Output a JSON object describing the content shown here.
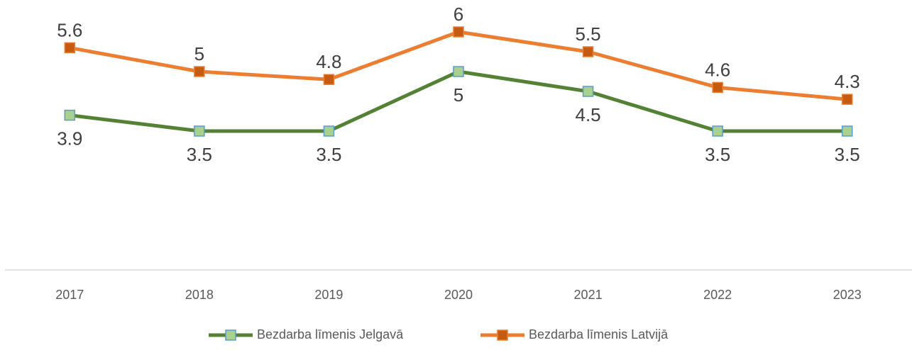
{
  "chart_data": {
    "type": "line",
    "categories": [
      "2017",
      "2018",
      "2019",
      "2020",
      "2021",
      "2022",
      "2023"
    ],
    "series": [
      {
        "name": "Bezdarba līmenis Jelgavā",
        "color": "#548235",
        "values": [
          3.9,
          3.5,
          3.5,
          5,
          4.5,
          3.5,
          3.5
        ]
      },
      {
        "name": "Bezdarba līmenis Latvijā",
        "color": "#ed7d31",
        "values": [
          5.6,
          5,
          4.8,
          6,
          5.5,
          4.6,
          4.3
        ]
      }
    ],
    "ylim": [
      0,
      7
    ],
    "legend": "bottom"
  }
}
